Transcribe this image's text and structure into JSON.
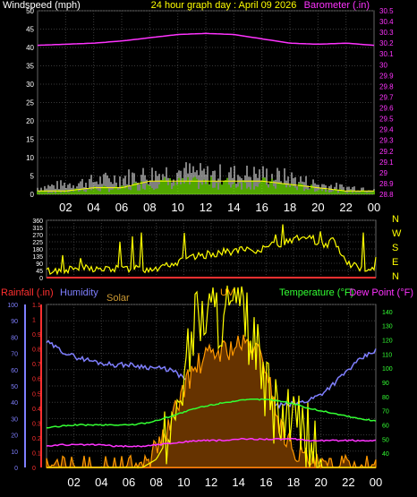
{
  "header": {
    "left": "Windspeed (mph)",
    "title": "24 hour graph day : April 09 2026",
    "right": "Barometer (.in)"
  },
  "hours": [
    "02",
    "04",
    "06",
    "08",
    "10",
    "12",
    "14",
    "16",
    "18",
    "20",
    "22",
    "00"
  ],
  "compass": [
    "N",
    "W",
    "S",
    "E",
    "N"
  ],
  "bottom_labels": {
    "rain": "Rainfall (.in)",
    "humidity": "Humidity",
    "solar": "Solar",
    "uv": "UV",
    "temp": "Temperature (°F)",
    "dew": "Dew Point (°F)"
  },
  "colors": {
    "wind": "#ffffff",
    "gust": "#7fff00",
    "avg": "#ffff00",
    "baro": "#ff33ff",
    "dir": "#ffff00",
    "rain": "#ff3030",
    "humidity": "#7f7fff",
    "solar": "#ff9900",
    "uv": "#ffff00",
    "temp": "#33ff33",
    "dew": "#ff33ff"
  },
  "chart_data": [
    {
      "type": "line",
      "x_hours": [
        0,
        2,
        4,
        6,
        8,
        10,
        12,
        14,
        16,
        18,
        20,
        22,
        24
      ],
      "series": [
        {
          "values": [
            1,
            1,
            2,
            2,
            4,
            4,
            4,
            4,
            4,
            3,
            2,
            1,
            1
          ]
        },
        {
          "values": [
            2,
            3,
            4,
            5,
            6,
            7,
            6,
            6,
            6,
            5,
            3,
            2,
            2
          ]
        },
        {
          "values": [
            30.18,
            30.19,
            30.2,
            30.22,
            30.25,
            30.28,
            30.29,
            30.28,
            30.24,
            30.2,
            30.19,
            30.2,
            30.18
          ]
        }
      ],
      "ylim": [
        0,
        50
      ],
      "ylim_right": [
        28.8,
        30.5
      ],
      "yticks": [
        0,
        5,
        10,
        15,
        20,
        25,
        30,
        35,
        40,
        45,
        50
      ],
      "yticks_right": [
        "28.8",
        "28.9",
        "29",
        "29.1",
        "29.2",
        "29.3",
        "29.4",
        "29.5",
        "29.6",
        "29.7",
        "29.8",
        "29.9",
        "30",
        "30.1",
        "30.2",
        "30.3",
        "30.4",
        "30.5"
      ]
    },
    {
      "type": "line",
      "x_hours": [
        0,
        1,
        2,
        3,
        4,
        5,
        6,
        7,
        8,
        9,
        10,
        11,
        12,
        13,
        14,
        15,
        16,
        17,
        18,
        19,
        20,
        21,
        22,
        23,
        24
      ],
      "values": [
        40,
        45,
        55,
        60,
        50,
        55,
        58,
        55,
        60,
        90,
        110,
        130,
        150,
        160,
        170,
        170,
        190,
        210,
        240,
        250,
        200,
        230,
        90,
        60,
        50
      ],
      "ylim": [
        0,
        360
      ],
      "yticks": [
        0,
        45,
        90,
        135,
        180,
        225,
        270,
        315,
        360
      ]
    },
    {
      "type": "line",
      "x_hours": [
        0,
        1,
        2,
        3,
        4,
        5,
        6,
        7,
        8,
        9,
        10,
        11,
        12,
        13,
        14,
        15,
        16,
        17,
        18,
        19,
        20,
        21,
        22,
        23,
        24
      ],
      "series": [
        {
          "values": [
            77,
            72,
            68,
            66,
            64,
            63,
            63,
            62,
            61,
            60,
            55,
            47,
            43,
            41,
            40,
            39,
            38,
            38,
            39,
            41,
            45,
            52,
            60,
            67,
            72
          ]
        },
        {
          "values": [
            0,
            0,
            0,
            0,
            0,
            0,
            0,
            0,
            5,
            10,
            20,
            25,
            28,
            29,
            30,
            30,
            25,
            10,
            5,
            2,
            0,
            0,
            0,
            0,
            0
          ]
        },
        {
          "values": [
            0,
            0,
            0,
            0,
            0,
            0,
            0,
            0,
            2,
            4,
            8,
            10,
            10,
            10,
            10,
            9,
            5,
            2,
            1,
            0,
            0,
            0,
            0,
            0,
            0
          ]
        },
        {
          "values": [
            58,
            59,
            60,
            60,
            60,
            60,
            60,
            61,
            63,
            66,
            69,
            72,
            74,
            76,
            77,
            78,
            78,
            77,
            75,
            72,
            70,
            68,
            66,
            64,
            63
          ]
        },
        {
          "values": [
            45,
            46,
            46,
            46,
            46,
            45,
            45,
            45,
            46,
            47,
            48,
            49,
            49,
            49,
            50,
            50,
            50,
            50,
            50,
            49,
            49,
            49,
            49,
            49,
            49
          ]
        }
      ],
      "ylim_humidity": [
        0,
        100
      ],
      "yticks_humidity": [
        0,
        10,
        20,
        30,
        40,
        50,
        60,
        70,
        80,
        90,
        100
      ],
      "ylim_rain": [
        0,
        1.1
      ],
      "yticks_rain": [
        "0",
        "0.1",
        "0.2",
        "0.3",
        "0.4",
        "0.5",
        "0.6",
        "0.7",
        "0.8",
        "0.9",
        "1",
        "1.1"
      ],
      "ylim_temp": [
        30,
        145
      ],
      "yticks_temp": [
        40,
        50,
        60,
        70,
        80,
        90,
        100,
        110,
        120,
        130,
        140
      ]
    }
  ]
}
